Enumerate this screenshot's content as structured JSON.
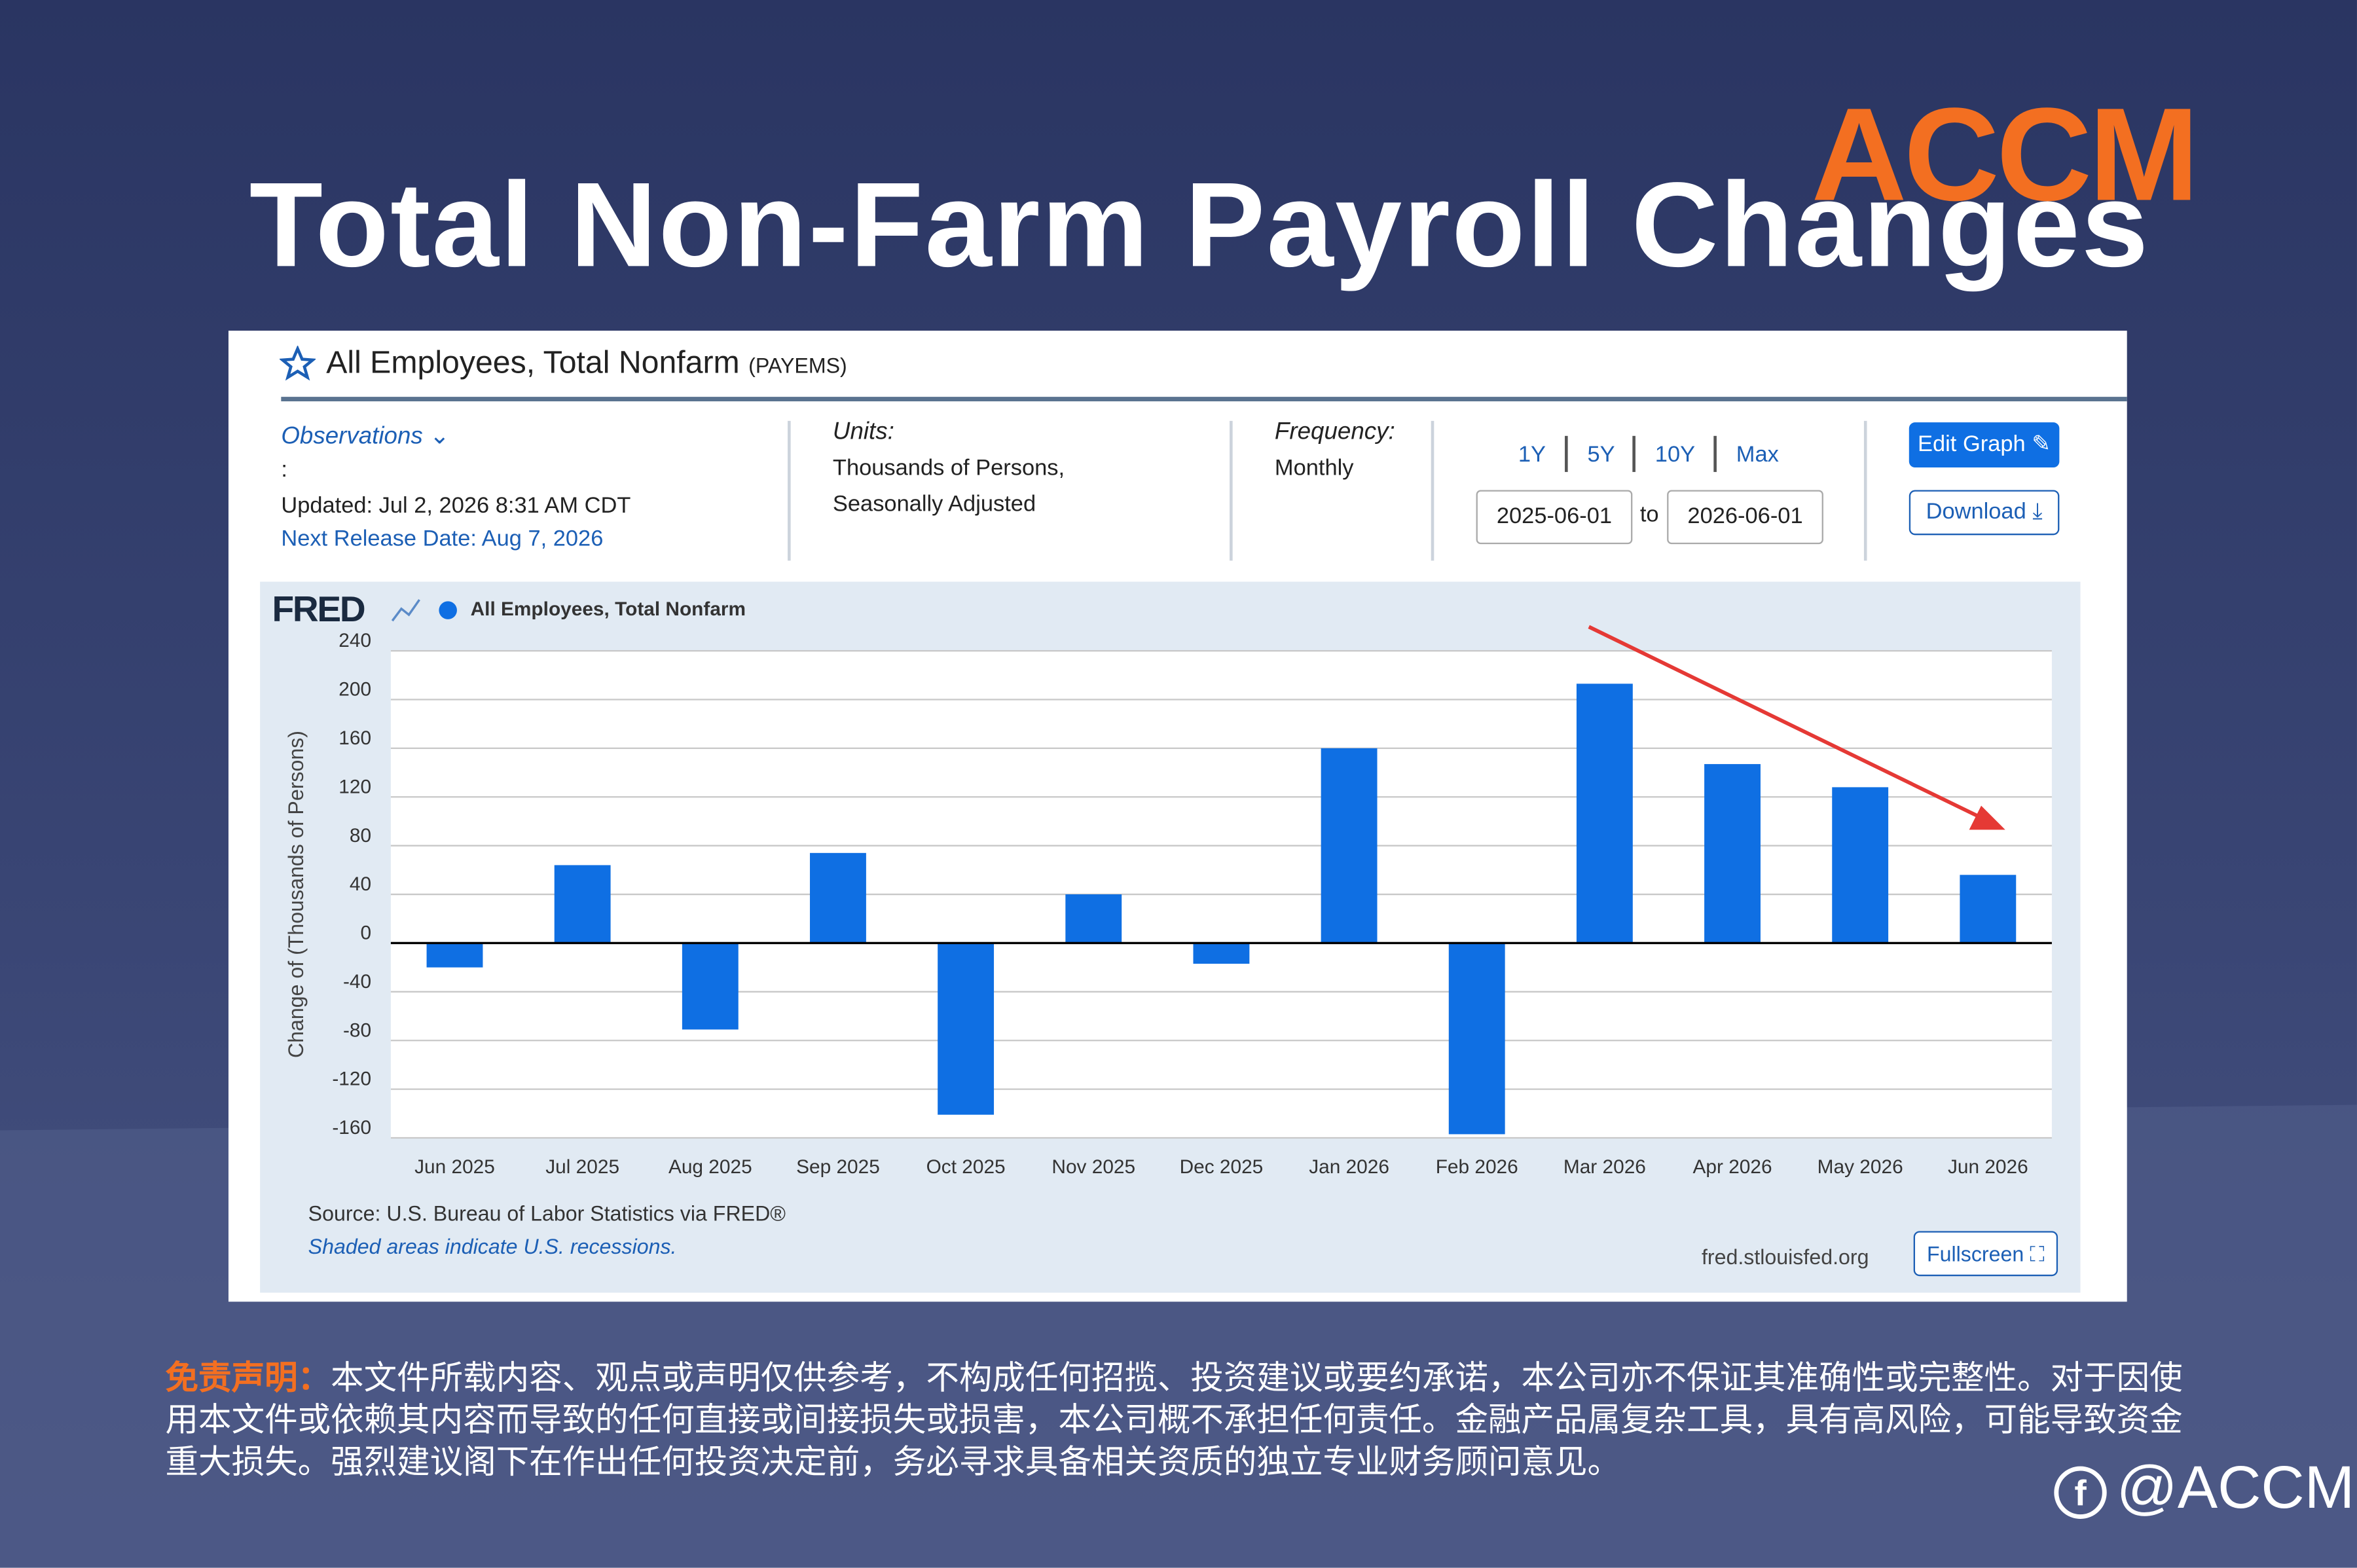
{
  "page": {
    "title": "Total Non-Farm Payroll Changes",
    "logo": "ACCM",
    "handle": "@ACCM",
    "disclaimer_label": "免责声明：",
    "disclaimer": "本文件所载内容、观点或声明仅供参考，不构成任何招揽、投资建议或要约承诺，本公司亦不保证其准确性或完整性。对于因使用本文件或依赖其内容而导致的任何直接或间接损失或损害，本公司概不承担任何责任。金融产品属复杂工具，具有高风险，可能导致资金重大损失。强烈建议阁下在作出任何投资决定前，务必寻求具备相关资质的独立专业财务顾问意见。"
  },
  "panel": {
    "series_title": "All Employees, Total Nonfarm",
    "series_id": "(PAYEMS)",
    "observations": "Observations",
    "colon": ":",
    "updated": "Updated: Jul 2, 2026 8:31 AM CDT",
    "next_release": "Next Release Date: Aug 7, 2026",
    "units_label": "Units:",
    "units": [
      "Thousands of Persons,",
      "Seasonally Adjusted"
    ],
    "frequency_label": "Frequency:",
    "frequency": "Monthly",
    "ranges": [
      "1Y",
      "5Y",
      "10Y",
      "Max"
    ],
    "start_date": "2025-06-01",
    "to": "to",
    "end_date": "2026-06-01",
    "edit": "Edit Graph",
    "download": "Download",
    "fred": "FRED",
    "source": "Source: U.S. Bureau of Labor Statistics via FRED®",
    "recessions": "Shaded areas indicate U.S. recessions.",
    "site": "fred.stlouisfed.org",
    "fullscreen": "Fullscreen"
  },
  "chart_data": {
    "type": "bar",
    "y_label": "Change of (Thousands of Persons)",
    "categories": [
      "Jun 2025",
      "Jul 2025",
      "Aug 2025",
      "Sep 2025",
      "Oct 2025",
      "Nov 2025",
      "Dec 2025",
      "Jan 2026",
      "Feb 2026",
      "Mar 2026",
      "Apr 2026",
      "May 2026",
      "Jun 2026"
    ],
    "series": [
      {
        "name": "All Employees, Total Nonfarm",
        "color": "#0f6fe3",
        "values": [
          -20,
          64,
          -71,
          74,
          -141,
          40,
          -17,
          160,
          -157,
          213,
          147,
          128,
          56
        ]
      }
    ],
    "ylim": [
      -160,
      240
    ],
    "yticks": [
      -160,
      -120,
      -80,
      -40,
      0,
      40,
      80,
      120,
      160,
      200,
      240
    ],
    "grid": true
  }
}
